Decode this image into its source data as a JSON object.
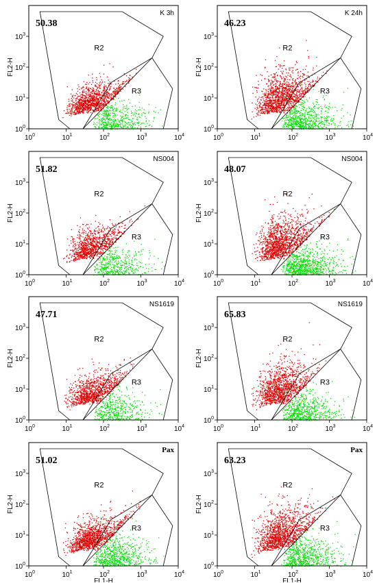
{
  "colors": {
    "r2": "#e00000",
    "r3": "#00e000",
    "frame": "#000000"
  },
  "chart_data": [
    {
      "type": "scatter",
      "label": "K 3h",
      "value": "50.38",
      "r2_count": 1100,
      "r3_count": 500,
      "show_xlabel": false
    },
    {
      "type": "scatter",
      "label": "K 24h",
      "value": "46.23",
      "r2_count": 1300,
      "r3_count": 650,
      "show_xlabel": false
    },
    {
      "type": "scatter",
      "label": "NS004",
      "value": "51.82",
      "r2_count": 1000,
      "r3_count": 450,
      "show_xlabel": false
    },
    {
      "type": "scatter",
      "label": "NS004",
      "value": "48.07",
      "r2_count": 1300,
      "r3_count": 800,
      "show_xlabel": false
    },
    {
      "type": "scatter",
      "label": "NS1619",
      "value": "47.71",
      "r2_count": 1000,
      "r3_count": 450,
      "show_xlabel": false
    },
    {
      "type": "scatter",
      "label": "NS1619",
      "value": "65.83",
      "r2_count": 1200,
      "r3_count": 600,
      "show_xlabel": false
    },
    {
      "type": "scatter",
      "label": "Pax",
      "value": "51.02",
      "r2_count": 1200,
      "r3_count": 650,
      "show_xlabel": true
    },
    {
      "type": "scatter",
      "label": "Pax",
      "value": "63.23",
      "r2_count": 1300,
      "r3_count": 650,
      "show_xlabel": true
    }
  ],
  "axes": {
    "xlabel": "FL1-H",
    "ylabel": "FL2-H",
    "xticks": [
      "10",
      "10",
      "10",
      "10",
      "10"
    ],
    "xexp": [
      "0",
      "1",
      "2",
      "3",
      "4"
    ],
    "yticks": [
      "10",
      "10",
      "10",
      "10"
    ],
    "yexp": [
      "0",
      "1",
      "2",
      "3"
    ],
    "scale": "log",
    "range": [
      1,
      10000
    ]
  },
  "regions": {
    "r2": "R2",
    "r3": "R3"
  }
}
